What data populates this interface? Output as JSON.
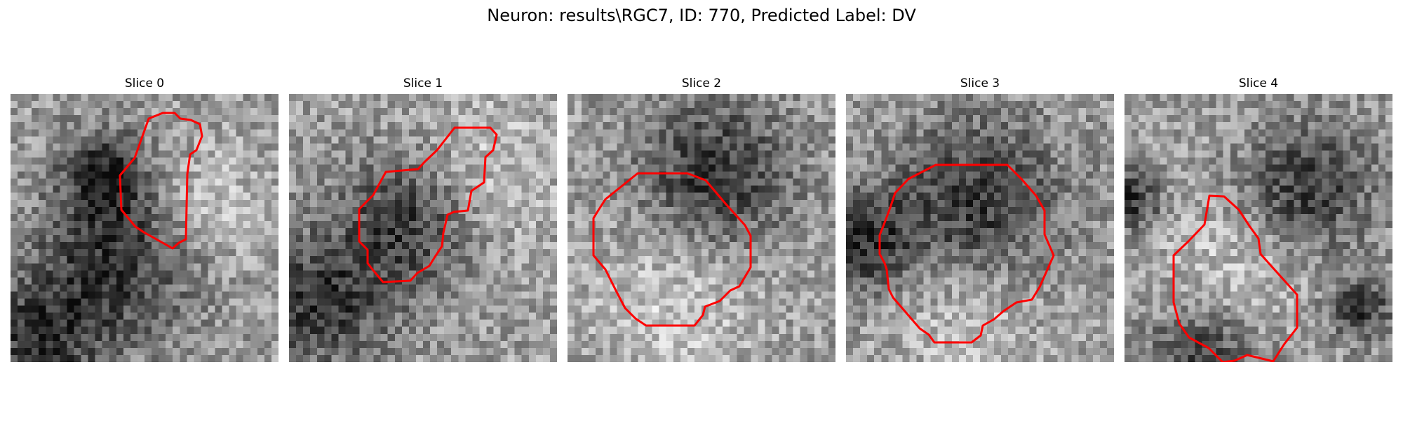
{
  "figure": {
    "title": "Neuron: results\\RGC7, ID: 770, Predicted Label: DV"
  },
  "colors": {
    "contour": "#ff0000",
    "background": "#ffffff"
  },
  "panels": [
    {
      "title": "Slice 0"
    },
    {
      "title": "Slice 1"
    },
    {
      "title": "Slice 2"
    },
    {
      "title": "Slice 3"
    },
    {
      "title": "Slice 4"
    }
  ]
}
